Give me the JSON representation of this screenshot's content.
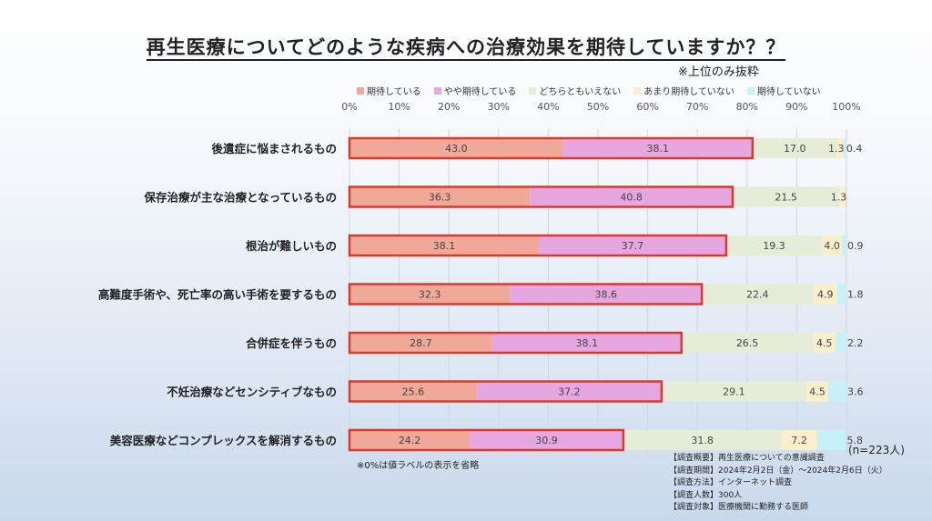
{
  "title": "再生医療についてどのような疾病への治療効果を期待していますか？？",
  "subnote": "※上位のみ抜粋",
  "footnote": "※0%は値ラベルの表示を省略",
  "n_label": "(n=223人)",
  "info_lines": [
    "【調査概要】再生医療についての意識調査",
    "【調査期間】2024年2月2日（金）～2024年2月6日（火）",
    "【調査方法】インターネット調査",
    "【調査人数】300人",
    "【調査対象】医療機関に勤務する医師"
  ],
  "chart_data": {
    "type": "bar",
    "orientation": "horizontal",
    "stacked": true,
    "xlim": [
      0,
      100
    ],
    "x_ticks": [
      "0%",
      "10%",
      "20%",
      "30%",
      "40%",
      "50%",
      "60%",
      "70%",
      "80%",
      "90%",
      "100%"
    ],
    "legend_position": "top",
    "grid": true,
    "categories": [
      "後遺症に悩まされるもの",
      "保存治療が主な治療となっているもの",
      "根治が難しいもの",
      "高難度手術や、死亡率の高い手術を要するもの",
      "合併症を伴うもの",
      "不妊治療などセンシティブなもの",
      "美容医療などコンプレックスを解消するもの"
    ],
    "series": [
      {
        "name": "期待している",
        "color": "#f0a898",
        "values": [
          43.0,
          36.3,
          38.1,
          32.3,
          28.7,
          25.6,
          24.2
        ],
        "labels": [
          "43.0",
          "36.3",
          "38.1",
          "32.3",
          "28.7",
          "25.6",
          "24.2"
        ]
      },
      {
        "name": "やや期待している",
        "color": "#e6a6e0",
        "values": [
          38.1,
          40.8,
          37.7,
          38.6,
          38.1,
          37.2,
          30.9
        ],
        "labels": [
          "38.1",
          "40.8",
          "37.7",
          "38.6",
          "38.1",
          "37.2",
          "30.9"
        ]
      },
      {
        "name": "どちらともいえない",
        "color": "#e5edd8",
        "values": [
          17.0,
          21.5,
          19.3,
          22.4,
          26.5,
          29.1,
          31.8
        ],
        "labels": [
          "17.0",
          "21.5",
          "19.3",
          "22.4",
          "26.5",
          "29.1",
          "31.8"
        ]
      },
      {
        "name": "あまり期待していない",
        "color": "#fbeeca",
        "values": [
          1.3,
          1.3,
          4.0,
          4.9,
          4.5,
          4.5,
          7.2
        ],
        "labels": [
          "1.3",
          "1.3",
          "4.0",
          "4.9",
          "4.5",
          "4.5",
          "7.2"
        ]
      },
      {
        "name": "期待していない",
        "color": "#c6f1f6",
        "values": [
          0.4,
          0,
          0.9,
          1.8,
          2.2,
          3.6,
          5.8
        ],
        "labels": [
          "0.4",
          "",
          "0.9",
          "1.8",
          "2.2",
          "3.6",
          "5.8"
        ]
      }
    ],
    "highlight_color": "#d93a2e"
  }
}
